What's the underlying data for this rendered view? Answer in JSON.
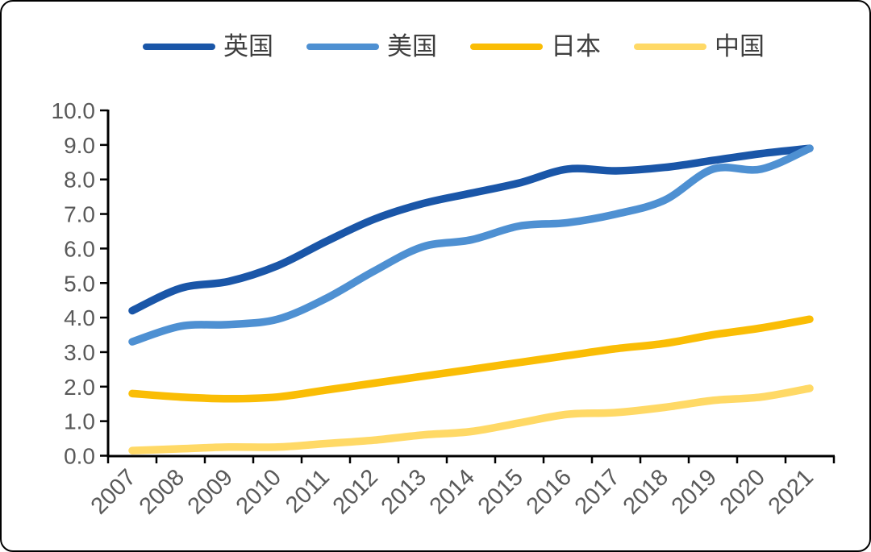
{
  "chart_data": {
    "type": "line",
    "title": "",
    "xlabel": "",
    "ylabel": "",
    "x_labels": [
      "2007",
      "2008",
      "2009",
      "2010",
      "2011",
      "2012",
      "2013",
      "2014",
      "2015",
      "2016",
      "2017",
      "2018",
      "2019",
      "2020",
      "2021"
    ],
    "y_tick_labels": [
      "10.0",
      "9.0",
      "8.0",
      "7.0",
      "6.0",
      "5.0",
      "4.0",
      "3.0",
      "2.0",
      "1.0",
      "0.0"
    ],
    "ylim": [
      0.0,
      10.0
    ],
    "y_tick_step": 1.0,
    "grid": false,
    "legend_position": "top",
    "axis_color": "#000000",
    "tick_label_color": "#595959",
    "series": [
      {
        "name": "英国",
        "color": "#1a56a8",
        "values": [
          4.2,
          4.85,
          5.05,
          5.5,
          6.2,
          6.85,
          7.3,
          7.6,
          7.9,
          8.3,
          8.25,
          8.35,
          8.55,
          8.75,
          8.9
        ]
      },
      {
        "name": "美国",
        "color": "#4e90d2",
        "values": [
          3.3,
          3.75,
          3.8,
          3.95,
          4.55,
          5.35,
          6.05,
          6.25,
          6.65,
          6.75,
          7.0,
          7.4,
          8.3,
          8.3,
          8.9
        ]
      },
      {
        "name": "日本",
        "color": "#fabd05",
        "values": [
          1.8,
          1.7,
          1.65,
          1.7,
          1.9,
          2.1,
          2.3,
          2.5,
          2.7,
          2.9,
          3.1,
          3.25,
          3.5,
          3.7,
          3.95
        ]
      },
      {
        "name": "中国",
        "color": "#ffd966",
        "values": [
          0.15,
          0.2,
          0.25,
          0.25,
          0.35,
          0.45,
          0.6,
          0.7,
          0.95,
          1.2,
          1.25,
          1.4,
          1.6,
          1.7,
          1.95
        ]
      }
    ]
  }
}
